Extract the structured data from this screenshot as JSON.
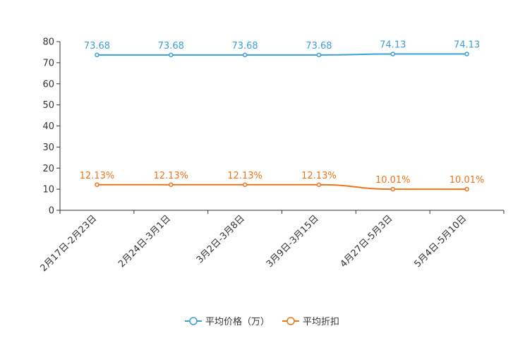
{
  "chart_data": {
    "type": "line",
    "categories": [
      "2月17日-2月23日",
      "2月24日-3月1日",
      "3月2日-3月8日",
      "3月9日-3月15日",
      "4月27日-5月3日",
      "5月4日-5月10日"
    ],
    "ylim": [
      0,
      80
    ],
    "yticks": [
      0,
      10,
      20,
      30,
      40,
      50,
      60,
      70,
      80
    ],
    "series": [
      {
        "name": "平均价格（万）",
        "color": "#3a9fd5",
        "values": [
          73.68,
          73.68,
          73.68,
          73.68,
          74.13,
          74.13
        ],
        "labels": [
          "73.68",
          "73.68",
          "73.68",
          "73.68",
          "74.13",
          "74.13"
        ]
      },
      {
        "name": "平均折扣",
        "color": "#f07318",
        "values": [
          12.13,
          12.13,
          12.13,
          12.13,
          10.01,
          10.01
        ],
        "labels": [
          "12.13%",
          "12.13%",
          "12.13%",
          "12.13%",
          "10.01%",
          "10.01%"
        ]
      }
    ],
    "legend_position": "bottom-center"
  }
}
